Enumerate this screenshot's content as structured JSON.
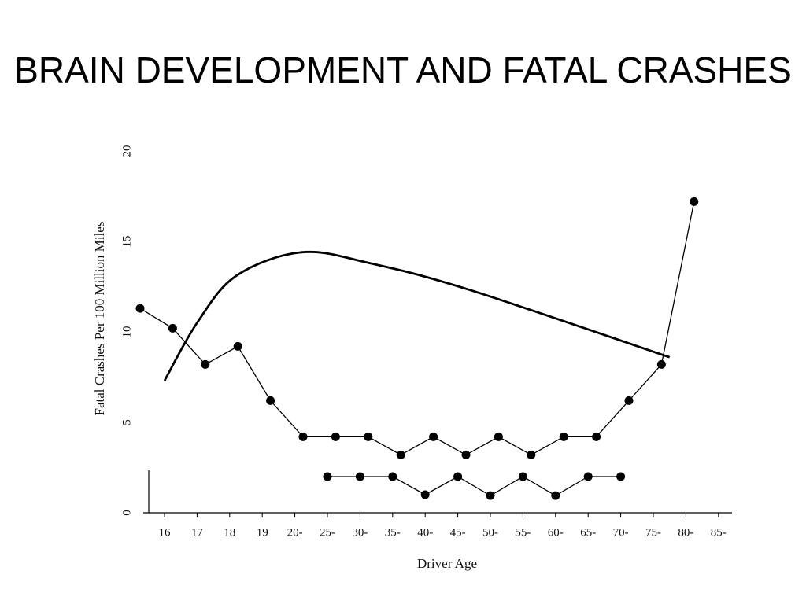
{
  "title": "BRAIN DEVELOPMENT AND FATAL CRASHES",
  "chart_data": {
    "type": "line",
    "x_label": "Driver Age",
    "y_label": "Fatal Crashes Per 100 Million Miles",
    "categories": [
      "16",
      "17",
      "18",
      "19",
      "20-",
      "25-",
      "30-",
      "35-",
      "40-",
      "45-",
      "50-",
      "55-",
      "60-",
      "65-",
      "70-",
      "75-",
      "80-",
      "85-"
    ],
    "ylim": [
      0,
      20
    ],
    "yticks": [
      0,
      5,
      10,
      15,
      20
    ],
    "series": [
      {
        "color": "#000000",
        "values": [
          11.3,
          10.2,
          8.2,
          9.2,
          6.2,
          4.2,
          4.2,
          4.2,
          3.2,
          4.2,
          3.2,
          4.2,
          3.2,
          4.2,
          4.2,
          6.2,
          8.2,
          17.2
        ]
      },
      {
        "color": "#000000",
        "values": [
          null,
          null,
          null,
          null,
          null,
          2.0,
          2.0,
          2.0,
          1.0,
          2.0,
          0.95,
          2.0,
          0.95,
          2.0,
          2.0,
          null,
          null,
          null
        ]
      }
    ],
    "curve": {
      "color": "#000000",
      "x": [
        0,
        1,
        2.2,
        4.2,
        6.3,
        9.4,
        15.5
      ],
      "values": [
        7.3,
        10.5,
        13.1,
        14.4,
        13.8,
        12.3,
        8.6
      ]
    }
  }
}
